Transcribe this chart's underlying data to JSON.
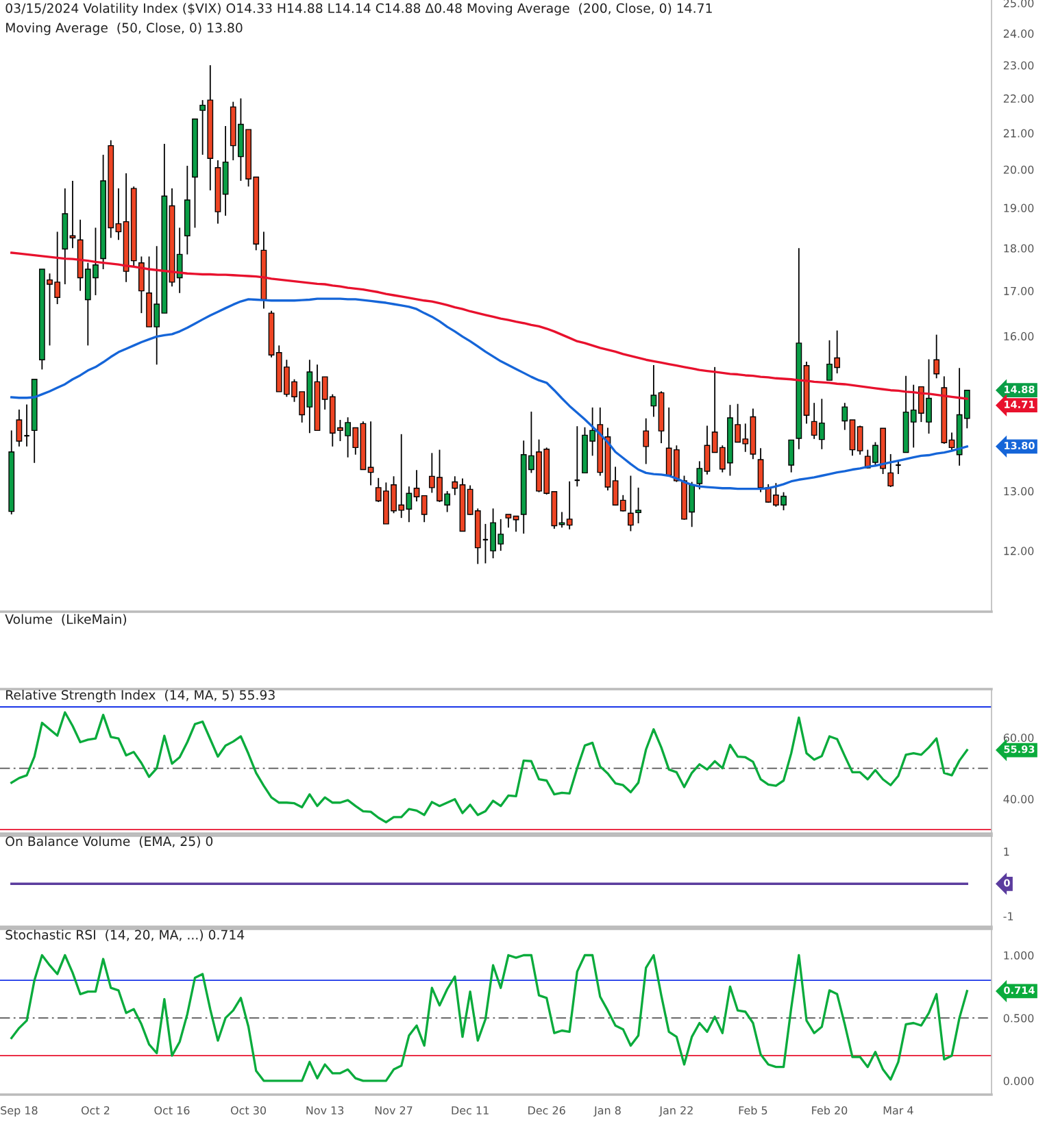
{
  "chart_data": [
    {
      "type": "candlestick",
      "title": "03/15/2024 Volatility Index ($VIX) O14.33 H14.88 L14.14 C14.88 Δ0.48 Moving Average  (200, Close, 0) 14.71",
      "subtitle": "Moving Average  (50, Close, 0) 13.80",
      "ohlc": [
        [
          12.65,
          14.1,
          12.6,
          13.7
        ],
        [
          14.3,
          14.5,
          13.8,
          13.9
        ],
        [
          14.0,
          14.6,
          13.8,
          14.0
        ],
        [
          14.1,
          15.1,
          13.5,
          15.1
        ],
        [
          15.5,
          17.5,
          15.3,
          17.5
        ],
        [
          17.25,
          17.4,
          15.8,
          17.15
        ],
        [
          17.2,
          18.4,
          16.7,
          16.85
        ],
        [
          17.98,
          19.5,
          17.15,
          18.85
        ],
        [
          18.3,
          19.7,
          18.0,
          18.25
        ],
        [
          18.2,
          18.7,
          17.0,
          17.3
        ],
        [
          16.8,
          17.65,
          15.8,
          17.5
        ],
        [
          17.3,
          18.5,
          16.9,
          17.6
        ],
        [
          17.75,
          20.4,
          17.5,
          19.7
        ],
        [
          20.65,
          20.8,
          18.25,
          18.5
        ],
        [
          18.6,
          19.5,
          18.2,
          18.4
        ],
        [
          18.65,
          19.9,
          17.2,
          17.45
        ],
        [
          19.5,
          19.55,
          17.55,
          17.7
        ],
        [
          17.65,
          17.8,
          16.5,
          17.0
        ],
        [
          16.95,
          17.8,
          16.2,
          16.2
        ],
        [
          16.2,
          18.05,
          15.4,
          16.7
        ],
        [
          16.5,
          20.7,
          16.5,
          19.3
        ],
        [
          19.05,
          19.5,
          17.1,
          17.2
        ],
        [
          17.3,
          18.5,
          16.95,
          17.85
        ],
        [
          18.3,
          20.1,
          17.85,
          19.2
        ],
        [
          19.8,
          21.4,
          18.5,
          21.4
        ],
        [
          21.65,
          21.95,
          20.4,
          21.8
        ],
        [
          21.95,
          23.0,
          19.45,
          20.3
        ],
        [
          20.05,
          20.25,
          18.6,
          18.9
        ],
        [
          19.35,
          21.2,
          18.8,
          20.2
        ],
        [
          21.75,
          21.9,
          20.25,
          20.65
        ],
        [
          20.35,
          22.0,
          19.7,
          21.25
        ],
        [
          21.1,
          21.1,
          19.55,
          19.75
        ],
        [
          19.8,
          19.8,
          17.95,
          18.1
        ],
        [
          17.95,
          18.4,
          16.6,
          16.8
        ],
        [
          16.5,
          16.55,
          15.55,
          15.6
        ],
        [
          15.65,
          15.8,
          14.85,
          14.85
        ],
        [
          15.35,
          15.5,
          14.75,
          14.8
        ],
        [
          15.05,
          15.1,
          14.65,
          14.75
        ],
        [
          14.85,
          14.85,
          14.25,
          14.4
        ],
        [
          14.55,
          15.5,
          14.05,
          15.25
        ],
        [
          15.05,
          15.4,
          14.1,
          14.1
        ],
        [
          15.15,
          15.15,
          14.5,
          14.7
        ],
        [
          14.75,
          14.8,
          13.8,
          14.05
        ],
        [
          14.15,
          14.3,
          13.9,
          14.1
        ],
        [
          14.0,
          14.35,
          13.6,
          14.25
        ],
        [
          14.15,
          14.15,
          13.65,
          13.78
        ],
        [
          14.23,
          14.27,
          13.38,
          13.38
        ],
        [
          13.42,
          14.27,
          13.1,
          13.33
        ],
        [
          13.06,
          13.23,
          12.81,
          12.83
        ],
        [
          13.0,
          13.15,
          12.44,
          12.44
        ],
        [
          13.11,
          13.26,
          12.62,
          12.66
        ],
        [
          12.76,
          14.03,
          12.54,
          12.67
        ],
        [
          12.69,
          13.08,
          12.47,
          12.96
        ],
        [
          13.05,
          13.37,
          12.82,
          12.9
        ],
        [
          12.92,
          12.92,
          12.47,
          12.6
        ],
        [
          13.26,
          13.68,
          12.97,
          13.06
        ],
        [
          13.24,
          13.74,
          12.81,
          12.83
        ],
        [
          12.76,
          13.0,
          12.64,
          12.95
        ],
        [
          13.16,
          13.26,
          12.93,
          13.05
        ],
        [
          13.11,
          13.22,
          12.32,
          12.32
        ],
        [
          13.03,
          13.1,
          12.59,
          12.6
        ],
        [
          12.66,
          12.7,
          11.79,
          12.05
        ],
        [
          12.18,
          12.44,
          11.8,
          12.18
        ],
        [
          12.0,
          12.7,
          11.88,
          12.46
        ],
        [
          12.11,
          12.52,
          12.0,
          12.27
        ],
        [
          12.6,
          12.6,
          12.38,
          12.54
        ],
        [
          12.57,
          12.57,
          12.31,
          12.51
        ],
        [
          12.6,
          13.91,
          12.28,
          13.65
        ],
        [
          13.38,
          14.46,
          13.32,
          13.63
        ],
        [
          13.7,
          13.93,
          12.98,
          13.0
        ],
        [
          13.75,
          13.78,
          12.94,
          12.96
        ],
        [
          12.99,
          12.99,
          12.36,
          12.41
        ],
        [
          12.43,
          12.64,
          12.38,
          12.46
        ],
        [
          12.52,
          13.17,
          12.35,
          12.42
        ],
        [
          13.19,
          14.18,
          13.08,
          13.19
        ],
        [
          13.32,
          14.16,
          13.32,
          14.01
        ],
        [
          13.9,
          14.54,
          13.63,
          14.1
        ],
        [
          14.21,
          14.54,
          13.27,
          13.33
        ],
        [
          13.98,
          14.15,
          13.01,
          13.07
        ],
        [
          13.18,
          13.43,
          12.75,
          12.76
        ],
        [
          12.84,
          12.93,
          12.65,
          12.66
        ],
        [
          12.62,
          13.27,
          12.32,
          12.42
        ],
        [
          12.63,
          13.06,
          12.45,
          12.67
        ],
        [
          14.09,
          14.33,
          13.48,
          13.8
        ],
        [
          14.57,
          15.39,
          14.36,
          14.78
        ],
        [
          14.83,
          14.86,
          13.86,
          14.09
        ],
        [
          13.77,
          14.54,
          13.28,
          13.28
        ],
        [
          13.74,
          13.82,
          13.16,
          13.18
        ],
        [
          13.18,
          13.27,
          12.51,
          12.52
        ],
        [
          12.64,
          13.16,
          12.39,
          13.11
        ],
        [
          13.13,
          13.53,
          13.03,
          13.4
        ],
        [
          13.82,
          14.19,
          13.29,
          13.35
        ],
        [
          14.07,
          15.35,
          13.69,
          13.69
        ],
        [
          13.78,
          13.82,
          13.33,
          13.39
        ],
        [
          13.5,
          14.59,
          13.27,
          14.34
        ],
        [
          14.21,
          14.61,
          13.88,
          13.88
        ],
        [
          13.94,
          14.23,
          13.7,
          13.85
        ],
        [
          14.36,
          14.52,
          13.57,
          13.66
        ],
        [
          13.56,
          13.77,
          12.98,
          13.06
        ],
        [
          13.06,
          13.12,
          12.8,
          12.81
        ],
        [
          12.93,
          13.14,
          12.73,
          12.76
        ],
        [
          12.76,
          12.98,
          12.67,
          12.91
        ],
        [
          13.46,
          13.92,
          13.33,
          13.92
        ],
        [
          13.95,
          18.0,
          13.75,
          15.85
        ],
        [
          15.38,
          15.46,
          14.23,
          14.39
        ],
        [
          14.27,
          14.63,
          13.94,
          14.01
        ],
        [
          13.93,
          14.71,
          13.75,
          14.24
        ],
        [
          15.08,
          15.91,
          15.08,
          15.41
        ],
        [
          15.54,
          16.12,
          15.22,
          15.34
        ],
        [
          14.28,
          14.63,
          14.11,
          14.55
        ],
        [
          14.3,
          14.3,
          13.63,
          13.74
        ],
        [
          14.17,
          14.19,
          13.65,
          13.72
        ],
        [
          13.62,
          13.74,
          13.4,
          13.41
        ],
        [
          13.51,
          13.88,
          13.44,
          13.82
        ],
        [
          14.14,
          14.14,
          13.3,
          13.4
        ],
        [
          13.32,
          13.66,
          13.07,
          13.09
        ],
        [
          13.46,
          13.53,
          13.3,
          13.46
        ],
        [
          13.69,
          15.17,
          13.69,
          14.45
        ],
        [
          14.26,
          14.99,
          13.78,
          14.49
        ],
        [
          14.95,
          14.95,
          14.26,
          14.43
        ],
        [
          14.26,
          15.51,
          14.04,
          14.72
        ],
        [
          15.5,
          16.03,
          15.12,
          15.21
        ],
        [
          14.93,
          15.16,
          13.85,
          13.87
        ],
        [
          13.92,
          14.06,
          13.71,
          13.78
        ],
        [
          13.65,
          15.33,
          13.45,
          14.4
        ],
        [
          14.33,
          14.88,
          14.14,
          14.88
        ]
      ],
      "series": [
        {
          "type": "line",
          "color": "#e8112d",
          "values": [
            17.89,
            17.87,
            17.85,
            17.83,
            17.81,
            17.79,
            17.77,
            17.75,
            17.74,
            17.72,
            17.7,
            17.67,
            17.65,
            17.63,
            17.61,
            17.58,
            17.56,
            17.53,
            17.5,
            17.48,
            17.46,
            17.44,
            17.42,
            17.4,
            17.39,
            17.38,
            17.38,
            17.37,
            17.37,
            17.36,
            17.35,
            17.34,
            17.33,
            17.31,
            17.28,
            17.26,
            17.24,
            17.22,
            17.2,
            17.18,
            17.16,
            17.15,
            17.12,
            17.1,
            17.07,
            17.05,
            17.03,
            17.0,
            16.97,
            16.93,
            16.9,
            16.87,
            16.84,
            16.81,
            16.78,
            16.76,
            16.72,
            16.68,
            16.63,
            16.59,
            16.54,
            16.5,
            16.46,
            16.42,
            16.38,
            16.35,
            16.31,
            16.28,
            16.24,
            16.21,
            16.16,
            16.1,
            16.03,
            15.96,
            15.89,
            15.85,
            15.8,
            15.75,
            15.71,
            15.67,
            15.62,
            15.58,
            15.54,
            15.5,
            15.47,
            15.44,
            15.41,
            15.38,
            15.35,
            15.32,
            15.29,
            15.27,
            15.25,
            15.23,
            15.21,
            15.2,
            15.18,
            15.17,
            15.15,
            15.14,
            15.12,
            15.11,
            15.1,
            15.08,
            15.07,
            15.05,
            15.04,
            15.03,
            15.01,
            15.0,
            14.98,
            14.96,
            14.94,
            14.92,
            14.9,
            14.88,
            14.87,
            14.85,
            14.84,
            14.82,
            14.81,
            14.79,
            14.77,
            14.75,
            14.73,
            14.71
          ]
        },
        {
          "type": "line",
          "color": "#1565d8",
          "values": [
            14.74,
            14.73,
            14.73,
            14.74,
            14.8,
            14.86,
            14.93,
            15.0,
            15.1,
            15.18,
            15.28,
            15.35,
            15.45,
            15.56,
            15.66,
            15.73,
            15.8,
            15.87,
            15.93,
            15.99,
            16.02,
            16.04,
            16.1,
            16.18,
            16.27,
            16.36,
            16.45,
            16.53,
            16.61,
            16.69,
            16.76,
            16.81,
            16.8,
            16.79,
            16.78,
            16.78,
            16.78,
            16.78,
            16.79,
            16.8,
            16.82,
            16.82,
            16.82,
            16.82,
            16.81,
            16.81,
            16.79,
            16.77,
            16.75,
            16.73,
            16.7,
            16.67,
            16.64,
            16.59,
            16.5,
            16.42,
            16.32,
            16.2,
            16.1,
            15.99,
            15.89,
            15.78,
            15.67,
            15.57,
            15.47,
            15.39,
            15.31,
            15.23,
            15.15,
            15.08,
            15.03,
            14.88,
            14.72,
            14.57,
            14.44,
            14.31,
            14.17,
            14.03,
            13.88,
            13.7,
            13.59,
            13.48,
            13.38,
            13.32,
            13.3,
            13.29,
            13.27,
            13.22,
            13.16,
            13.11,
            13.08,
            13.07,
            13.06,
            13.05,
            13.05,
            13.04,
            13.04,
            13.04,
            13.04,
            13.05,
            13.08,
            13.12,
            13.17,
            13.2,
            13.22,
            13.24,
            13.27,
            13.3,
            13.33,
            13.35,
            13.38,
            13.4,
            13.43,
            13.45,
            13.48,
            13.51,
            13.54,
            13.57,
            13.6,
            13.63,
            13.64,
            13.67,
            13.69,
            13.72,
            13.76,
            13.8
          ]
        }
      ],
      "log": true,
      "ylim": [
        11.06,
        25.1
      ],
      "yticks": [
        {
          "value": 12,
          "label": "12.00"
        },
        {
          "value": 13,
          "label": "13.00"
        },
        {
          "value": 16,
          "label": "16.00"
        },
        {
          "value": 17,
          "label": "17.00"
        },
        {
          "value": 18,
          "label": "18.00"
        },
        {
          "value": 19,
          "label": "19.00"
        },
        {
          "value": 20,
          "label": "20.00"
        },
        {
          "value": 21,
          "label": "21.00"
        },
        {
          "value": 22,
          "label": "22.00"
        },
        {
          "value": 23,
          "label": "23.00"
        },
        {
          "value": 24,
          "label": "24.00"
        },
        {
          "value": 25,
          "label": "25.00"
        }
      ],
      "tick_labels": "y",
      "annotations": [
        "14.88",
        "14.71",
        "13.80"
      ]
    },
    {
      "type": "other",
      "title": "Volume  (LikeMain)"
    },
    {
      "type": "line",
      "title": "Relative Strength Index  (14, MA, 5) 55.93",
      "series": [
        {
          "color": "#0aab3c",
          "values": [
            45.3,
            46.8,
            47.7,
            53.8,
            64.8,
            62.7,
            60.6,
            68.2,
            63.8,
            58.5,
            59.3,
            59.7,
            67.4,
            60.2,
            59.7,
            54.2,
            55.3,
            51.7,
            47.2,
            50.0,
            60.6,
            51.5,
            53.6,
            58.5,
            64.4,
            65.2,
            59.5,
            53.8,
            57.4,
            58.7,
            60.4,
            54.7,
            48.5,
            44.3,
            40.5,
            38.8,
            38.8,
            38.6,
            37.3,
            41.5,
            37.7,
            40.5,
            38.8,
            38.8,
            39.6,
            37.7,
            36.0,
            35.8,
            33.9,
            32.4,
            34.1,
            34.1,
            36.7,
            36.2,
            34.8,
            39.0,
            37.7,
            38.8,
            39.9,
            35.4,
            38.1,
            34.8,
            36.0,
            39.4,
            37.7,
            41.1,
            40.9,
            52.5,
            52.3,
            46.4,
            46.0,
            41.5,
            42.0,
            41.8,
            50.0,
            57.4,
            58.3,
            50.6,
            48.3,
            45.1,
            44.5,
            42.2,
            45.3,
            56.1,
            62.7,
            56.8,
            49.6,
            48.7,
            43.9,
            48.5,
            51.3,
            49.6,
            52.3,
            50.0,
            57.6,
            53.8,
            53.6,
            52.1,
            46.4,
            44.7,
            44.3,
            46.0,
            54.9,
            66.5,
            54.9,
            52.8,
            54.0,
            60.4,
            59.5,
            54.0,
            48.7,
            48.7,
            46.4,
            49.4,
            46.4,
            44.5,
            47.5,
            54.4,
            54.9,
            54.4,
            56.8,
            59.7,
            48.5,
            47.7,
            52.5,
            55.93
          ]
        }
      ],
      "ylim": [
        28.7,
        75.8
      ],
      "yticks": [
        {
          "value": 40,
          "label": "40.00"
        },
        {
          "value": 60,
          "label": "60.00"
        }
      ],
      "ref_lines": [
        {
          "axis": "y",
          "value": 70,
          "color": "#1a35e8"
        },
        {
          "axis": "y",
          "value": 50,
          "color": "#555555",
          "line_style": "dashdot"
        },
        {
          "axis": "y",
          "value": 30,
          "color": "#e8112d"
        }
      ],
      "tick_labels": "y",
      "annotations": [
        "55.93"
      ]
    },
    {
      "type": "line",
      "title": "On Balance Volume  (EMA, 25) 0",
      "series": [
        {
          "color": "#5b3c9e",
          "values": [
            0,
            0,
            0,
            0,
            0,
            0,
            0,
            0,
            0,
            0,
            0,
            0,
            0,
            0,
            0,
            0,
            0,
            0,
            0,
            0,
            0,
            0,
            0,
            0,
            0,
            0,
            0,
            0,
            0,
            0,
            0,
            0,
            0,
            0,
            0,
            0,
            0,
            0,
            0,
            0,
            0,
            0,
            0,
            0,
            0,
            0,
            0,
            0,
            0,
            0,
            0,
            0,
            0,
            0,
            0,
            0,
            0,
            0,
            0,
            0,
            0,
            0,
            0,
            0,
            0,
            0,
            0,
            0,
            0,
            0,
            0,
            0,
            0,
            0,
            0,
            0,
            0,
            0,
            0,
            0,
            0,
            0,
            0,
            0,
            0,
            0,
            0,
            0,
            0,
            0,
            0,
            0,
            0,
            0,
            0,
            0,
            0,
            0,
            0,
            0,
            0,
            0,
            0,
            0,
            0,
            0,
            0,
            0,
            0,
            0,
            0,
            0,
            0,
            0,
            0,
            0,
            0,
            0,
            0,
            0,
            0,
            0,
            0,
            0,
            0,
            0
          ]
        }
      ],
      "ylim": [
        -1.33,
        1.49
      ],
      "yticks": [
        1,
        {
          "value": -1,
          "label": "-1"
        }
      ],
      "tick_labels": "y",
      "annotations": [
        "0"
      ]
    },
    {
      "type": "line",
      "title": "Stochastic RSI  (14, 20, MA, ...) 0.714",
      "categories": [
        null,
        "Sep 18",
        null,
        null,
        null,
        null,
        null,
        null,
        null,
        null,
        null,
        "Oct 2",
        null,
        null,
        null,
        null,
        null,
        null,
        null,
        null,
        null,
        "Oct 16",
        null,
        null,
        null,
        null,
        null,
        null,
        null,
        null,
        null,
        "Oct 30",
        null,
        null,
        null,
        null,
        null,
        null,
        null,
        null,
        null,
        "Nov 13",
        null,
        null,
        null,
        null,
        null,
        null,
        null,
        null,
        "Nov 27",
        null,
        null,
        null,
        null,
        null,
        null,
        null,
        null,
        null,
        "Dec 11",
        null,
        null,
        null,
        null,
        null,
        null,
        null,
        null,
        null,
        "Dec 26",
        null,
        null,
        null,
        null,
        null,
        null,
        null,
        "Jan 8",
        null,
        null,
        null,
        null,
        null,
        null,
        null,
        null,
        "Jan 22",
        null,
        null,
        null,
        null,
        null,
        null,
        null,
        null,
        null,
        "Feb 5",
        null,
        null,
        null,
        null,
        null,
        null,
        null,
        null,
        null,
        "Feb 20",
        null,
        null,
        null,
        null,
        null,
        null,
        null,
        null,
        "Mar 4",
        null,
        null,
        null,
        null,
        null,
        null,
        null,
        null,
        null
      ],
      "series": [
        {
          "color": "#0aab3c",
          "values": [
            0.34,
            0.42,
            0.48,
            0.8,
            1.0,
            0.92,
            0.85,
            1.0,
            0.86,
            0.69,
            0.71,
            0.71,
            0.97,
            0.74,
            0.72,
            0.54,
            0.57,
            0.45,
            0.29,
            0.22,
            0.65,
            0.2,
            0.31,
            0.53,
            0.82,
            0.85,
            0.57,
            0.32,
            0.5,
            0.56,
            0.66,
            0.43,
            0.08,
            0.0,
            0.0,
            0.0,
            0.0,
            0.0,
            0.0,
            0.15,
            0.02,
            0.13,
            0.06,
            0.06,
            0.09,
            0.02,
            0.0,
            0.0,
            0.0,
            0.0,
            0.09,
            0.12,
            0.36,
            0.44,
            0.28,
            0.74,
            0.6,
            0.73,
            0.83,
            0.35,
            0.71,
            0.32,
            0.49,
            0.92,
            0.74,
            1.0,
            0.98,
            1.0,
            1.0,
            0.68,
            0.66,
            0.38,
            0.4,
            0.39,
            0.87,
            1.0,
            1.0,
            0.67,
            0.56,
            0.44,
            0.41,
            0.28,
            0.36,
            0.9,
            1.0,
            0.68,
            0.39,
            0.35,
            0.13,
            0.35,
            0.46,
            0.39,
            0.51,
            0.38,
            0.75,
            0.56,
            0.55,
            0.46,
            0.21,
            0.13,
            0.11,
            0.11,
            0.58,
            1.0,
            0.48,
            0.38,
            0.43,
            0.72,
            0.69,
            0.45,
            0.19,
            0.19,
            0.11,
            0.23,
            0.09,
            0.01,
            0.15,
            0.45,
            0.46,
            0.44,
            0.54,
            0.69,
            0.17,
            0.2,
            0.5,
            0.714
          ]
        }
      ],
      "ylim": [
        -0.11,
        1.21
      ],
      "yticks": [
        {
          "value": 0,
          "label": "0.000"
        },
        {
          "value": 0.5,
          "label": "0.500"
        },
        {
          "value": 1,
          "label": "1.000"
        }
      ],
      "ref_lines": [
        {
          "axis": "y",
          "value": 0.8,
          "color": "#1a35e8"
        },
        {
          "axis": "y",
          "value": 0.5,
          "color": "#555555",
          "line_style": "dashdot"
        },
        {
          "axis": "y",
          "value": 0.2,
          "color": "#e8112d"
        }
      ],
      "annotations": [
        "0.714"
      ]
    }
  ]
}
